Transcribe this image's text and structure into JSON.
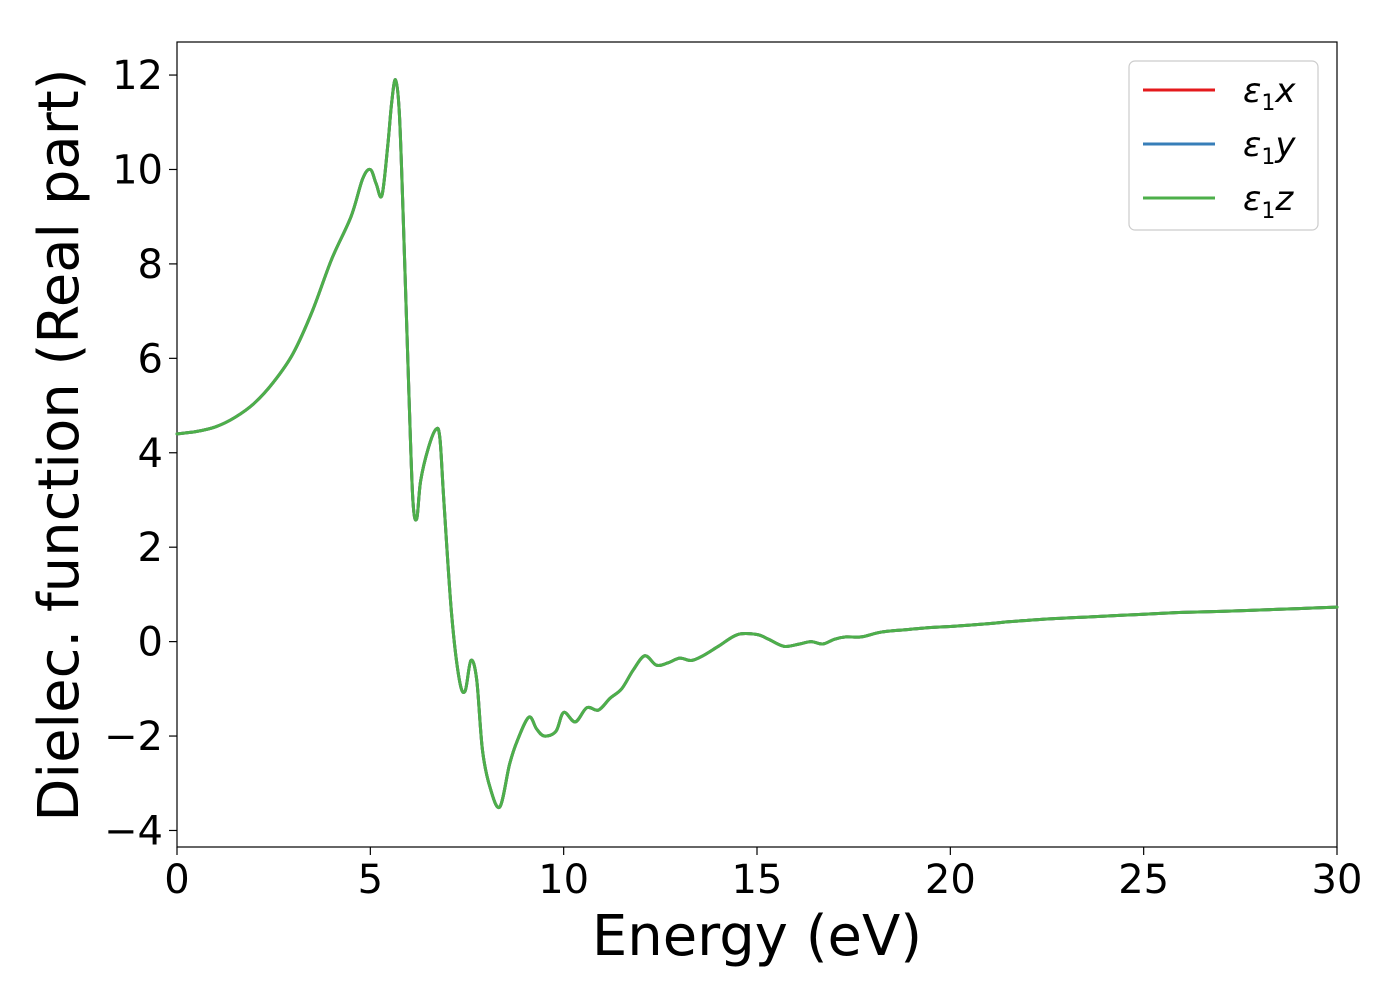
{
  "chart_data": {
    "type": "line",
    "xlabel": "Energy (eV)",
    "ylabel": "Dielec. function (Real part)",
    "xlim": [
      0,
      30
    ],
    "ylim": [
      -4.35,
      12.7
    ],
    "xticks": [
      0,
      5,
      10,
      15,
      20,
      25,
      30
    ],
    "xtick_labels": [
      "0",
      "5",
      "10",
      "15",
      "20",
      "25",
      "30"
    ],
    "yticks": [
      -4,
      -2,
      0,
      2,
      4,
      6,
      8,
      10,
      12
    ],
    "ytick_labels": [
      "−4",
      "−2",
      "0",
      "2",
      "4",
      "6",
      "8",
      "10",
      "12"
    ],
    "grid": false,
    "legend_position": "top-right",
    "series": [
      {
        "name": "ε1x",
        "legend_base": "ε",
        "legend_sub": "1",
        "legend_var": "x",
        "color": "#e41a1c"
      },
      {
        "name": "ε1y",
        "legend_base": "ε",
        "legend_sub": "1",
        "legend_var": "y",
        "color": "#377eb8"
      },
      {
        "name": "ε1z",
        "legend_base": "ε",
        "legend_sub": "1",
        "legend_var": "z",
        "color": "#4daf4a"
      }
    ],
    "x": [
      0,
      0.5,
      1,
      1.5,
      2,
      2.5,
      3,
      3.5,
      4,
      4.5,
      4.8,
      5.0,
      5.15,
      5.3,
      5.45,
      5.55,
      5.65,
      5.75,
      5.85,
      6.0,
      6.1,
      6.2,
      6.3,
      6.5,
      6.7,
      6.8,
      6.9,
      7.1,
      7.3,
      7.45,
      7.6,
      7.75,
      7.9,
      8.1,
      8.35,
      8.6,
      8.8,
      9.1,
      9.3,
      9.5,
      9.8,
      10.0,
      10.3,
      10.6,
      10.9,
      11.2,
      11.5,
      11.8,
      12.1,
      12.4,
      12.7,
      13.0,
      13.3,
      13.6,
      14.0,
      14.5,
      15.0,
      15.3,
      15.7,
      16.1,
      16.4,
      16.7,
      17.0,
      17.3,
      17.7,
      18.2,
      18.8,
      19.5,
      20.0,
      21.0,
      21.5,
      22.0,
      22.5,
      23.0,
      23.5,
      24.0,
      24.5,
      25.0,
      25.5,
      26.0,
      27.0,
      28.0,
      29.0,
      30.0
    ],
    "values": [
      4.4,
      4.45,
      4.55,
      4.75,
      5.05,
      5.5,
      6.1,
      7.0,
      8.1,
      9.0,
      9.8,
      10.0,
      9.7,
      9.45,
      10.5,
      11.4,
      11.9,
      11.2,
      9.0,
      5.2,
      3.0,
      2.6,
      3.4,
      4.1,
      4.5,
      4.3,
      3.0,
      0.6,
      -0.8,
      -1.05,
      -0.4,
      -0.8,
      -2.3,
      -3.1,
      -3.5,
      -2.6,
      -2.1,
      -1.6,
      -1.85,
      -2.0,
      -1.9,
      -1.5,
      -1.7,
      -1.4,
      -1.45,
      -1.2,
      -1.0,
      -0.6,
      -0.3,
      -0.5,
      -0.45,
      -0.35,
      -0.4,
      -0.3,
      -0.1,
      0.15,
      0.15,
      0.05,
      -0.1,
      -0.05,
      0.0,
      -0.05,
      0.05,
      0.1,
      0.1,
      0.2,
      0.25,
      0.3,
      0.32,
      0.38,
      0.42,
      0.45,
      0.48,
      0.5,
      0.52,
      0.54,
      0.56,
      0.58,
      0.6,
      0.62,
      0.64,
      0.67,
      0.7,
      0.73
    ]
  }
}
